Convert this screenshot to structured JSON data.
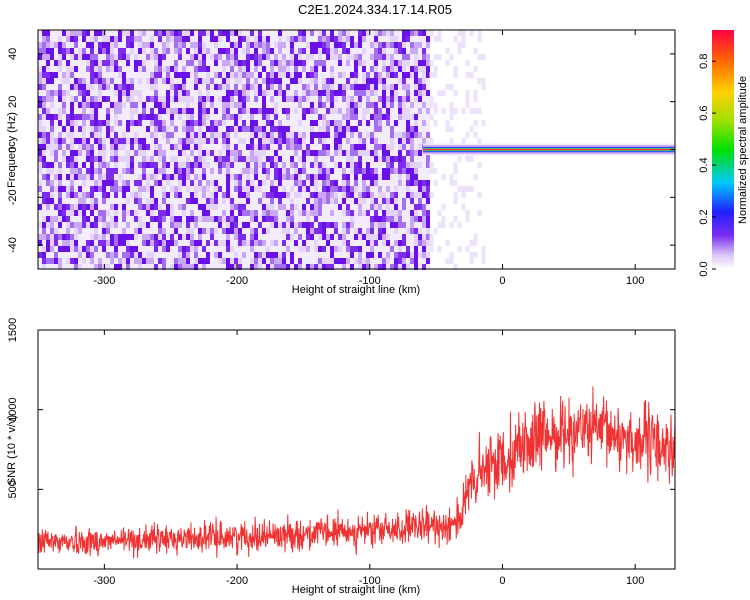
{
  "title": "C2E1.2024.334.17.14.R05",
  "chart_data": [
    {
      "type": "heatmap",
      "xlabel": "Height of straight line (km)",
      "ylabel": "Frequency (Hz)",
      "xlim": [
        -350,
        130
      ],
      "ylim": [
        -50,
        50
      ],
      "xticks": [
        "-300",
        "-200",
        "-100",
        "0",
        "100"
      ],
      "yticks": [
        "-40",
        "-20",
        "0",
        "20",
        "40"
      ],
      "noise_region_x": [
        -350,
        -55
      ],
      "signal_line": {
        "freq_hz": 0,
        "x_start": -60,
        "x_end": 130
      },
      "colorbar": {
        "label": "Normalized spectral amplitude",
        "range": [
          0.0,
          0.92
        ],
        "ticks": [
          "0.0",
          "0.2",
          "0.4",
          "0.6",
          "0.8"
        ]
      }
    },
    {
      "type": "line",
      "xlabel": "Height of straight line (km)",
      "ylabel": "SNR (10 * v/v)",
      "xlim": [
        -350,
        130
      ],
      "ylim": [
        0,
        1500
      ],
      "xticks": [
        "-300",
        "-200",
        "-100",
        "0",
        "100"
      ],
      "yticks": [
        "500",
        "1000",
        "1500"
      ],
      "series": [
        {
          "color": "#f03232",
          "envelope": [
            {
              "x": -350,
              "mean": 170,
              "spread": 110
            },
            {
              "x": -300,
              "mean": 175,
              "spread": 110
            },
            {
              "x": -250,
              "mean": 190,
              "spread": 115
            },
            {
              "x": -200,
              "mean": 205,
              "spread": 120
            },
            {
              "x": -150,
              "mean": 220,
              "spread": 125
            },
            {
              "x": -100,
              "mean": 240,
              "spread": 130
            },
            {
              "x": -60,
              "mean": 260,
              "spread": 140
            },
            {
              "x": -40,
              "mean": 280,
              "spread": 150
            },
            {
              "x": -30,
              "mean": 350,
              "spread": 200
            },
            {
              "x": -25,
              "mean": 500,
              "spread": 250
            },
            {
              "x": -15,
              "mean": 600,
              "spread": 270
            },
            {
              "x": 0,
              "mean": 700,
              "spread": 280
            },
            {
              "x": 20,
              "mean": 800,
              "spread": 280
            },
            {
              "x": 40,
              "mean": 850,
              "spread": 270
            },
            {
              "x": 60,
              "mean": 880,
              "spread": 260
            },
            {
              "x": 80,
              "mean": 850,
              "spread": 270
            },
            {
              "x": 100,
              "mean": 810,
              "spread": 280
            },
            {
              "x": 130,
              "mean": 760,
              "spread": 300
            }
          ]
        }
      ]
    }
  ]
}
